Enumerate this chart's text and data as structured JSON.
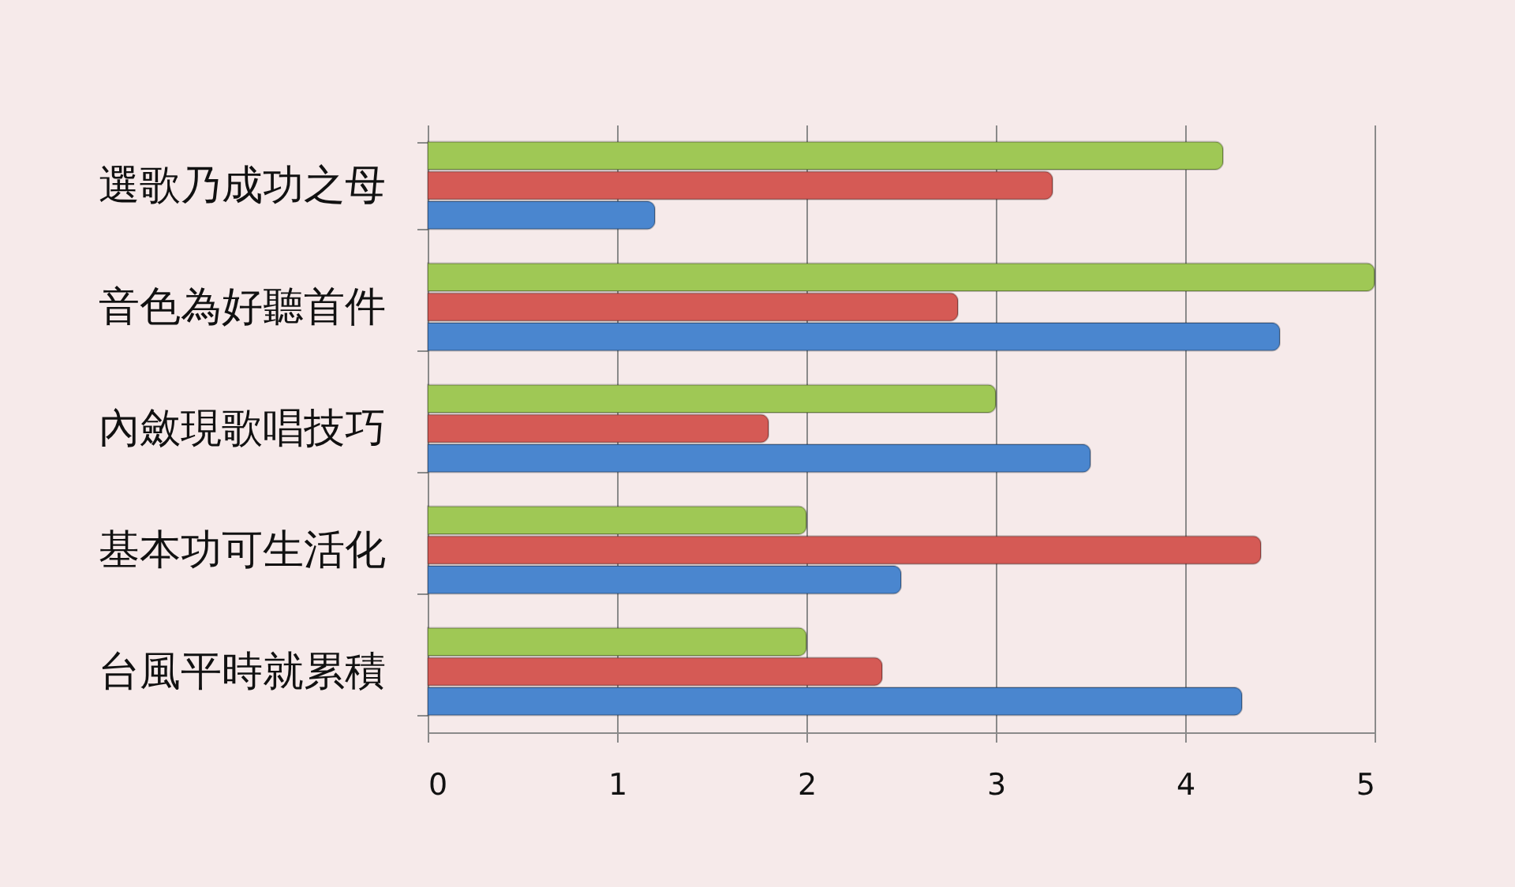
{
  "chart_data": {
    "type": "bar",
    "orientation": "horizontal",
    "categories": [
      "選歌乃成功之母",
      "音色為好聽首件",
      "內斂現歌唱技巧",
      "基本功可生活化",
      "台風平時就累積"
    ],
    "series": [
      {
        "color": "#9fc855",
        "values": [
          4.2,
          5.0,
          3.0,
          2.0,
          2.0
        ]
      },
      {
        "color": "#d55a55",
        "values": [
          3.3,
          2.8,
          1.8,
          4.4,
          2.4
        ]
      },
      {
        "color": "#4a86cf",
        "values": [
          1.2,
          4.5,
          3.5,
          2.5,
          4.3
        ]
      }
    ],
    "xlim": [
      0,
      5
    ],
    "xticks": [
      0,
      1,
      2,
      3,
      4,
      5
    ],
    "grid": "x"
  }
}
